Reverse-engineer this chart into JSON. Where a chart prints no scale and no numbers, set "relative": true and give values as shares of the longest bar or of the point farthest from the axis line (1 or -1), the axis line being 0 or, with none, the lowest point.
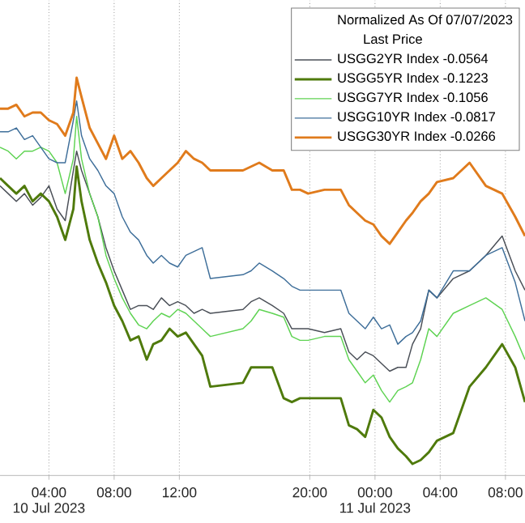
{
  "chart_data": {
    "type": "line",
    "relative": true,
    "legend_title": "Normalized As Of 07/07/2023",
    "annotations": [
      "Last Price",
      "10 Jul 2023",
      "11 Jul 2023"
    ],
    "xlim": [
      "2023-07-10T01:00",
      "2023-07-11T09:12"
    ],
    "xticks": [
      {
        "value": "2023-07-10T04:00",
        "label": "04:00"
      },
      {
        "value": "2023-07-10T08:00",
        "label": "08:00"
      },
      {
        "value": "2023-07-10T12:00",
        "label": "12:00"
      },
      {
        "value": "2023-07-10T20:00",
        "label": "20:00"
      },
      {
        "value": "2023-07-11T00:00",
        "label": "00:00"
      },
      {
        "value": "2023-07-11T04:00",
        "label": "04:00"
      },
      {
        "value": "2023-07-11T08:00",
        "label": "08:00"
      }
    ],
    "grid": "x",
    "legend": "top right",
    "marker": "none",
    "line_style": "solid",
    "x": [
      "2023-07-10T01:00",
      "2023-07-10T01:30",
      "2023-07-10T02:00",
      "2023-07-10T02:30",
      "2023-07-10T03:00",
      "2023-07-10T03:30",
      "2023-07-10T04:00",
      "2023-07-10T04:30",
      "2023-07-10T05:00",
      "2023-07-10T05:30",
      "2023-07-10T05:42",
      "2023-07-10T06:00",
      "2023-07-10T06:30",
      "2023-07-10T07:00",
      "2023-07-10T07:30",
      "2023-07-10T08:00",
      "2023-07-10T08:30",
      "2023-07-10T09:00",
      "2023-07-10T09:30",
      "2023-07-10T10:00",
      "2023-07-10T10:24",
      "2023-07-10T10:54",
      "2023-07-10T11:24",
      "2023-07-10T11:54",
      "2023-07-10T12:24",
      "2023-07-10T12:54",
      "2023-07-10T13:24",
      "2023-07-10T13:54",
      "2023-07-10T15:54",
      "2023-07-10T16:24",
      "2023-07-10T16:54",
      "2023-07-10T17:42",
      "2023-07-10T18:24",
      "2023-07-10T18:54",
      "2023-07-10T19:24",
      "2023-07-10T19:54",
      "2023-07-10T20:54",
      "2023-07-10T21:54",
      "2023-07-10T22:24",
      "2023-07-10T22:54",
      "2023-07-10T23:24",
      "2023-07-10T23:54",
      "2023-07-11T00:24",
      "2023-07-11T00:54",
      "2023-07-11T01:24",
      "2023-07-11T01:54",
      "2023-07-11T02:18",
      "2023-07-11T02:48",
      "2023-07-11T03:18",
      "2023-07-11T03:48",
      "2023-07-11T04:48",
      "2023-07-11T05:48",
      "2023-07-11T06:48",
      "2023-07-11T07:48",
      "2023-07-11T08:36",
      "2023-07-11T09:12"
    ],
    "series": [
      {
        "name": "USGG2YR Index  -0.0564",
        "color": "#4a4f57",
        "values": [
          0.72,
          0.7,
          0.68,
          0.7,
          0.67,
          0.69,
          0.72,
          0.66,
          0.63,
          0.76,
          0.81,
          0.76,
          0.7,
          0.64,
          0.56,
          0.5,
          0.45,
          0.4,
          0.41,
          0.41,
          0.4,
          0.43,
          0.41,
          0.42,
          0.41,
          0.39,
          0.4,
          0.39,
          0.4,
          0.42,
          0.43,
          0.41,
          0.39,
          0.35,
          0.35,
          0.35,
          0.34,
          0.35,
          0.29,
          0.27,
          0.29,
          0.28,
          0.26,
          0.24,
          0.25,
          0.25,
          0.31,
          0.35,
          0.45,
          0.43,
          0.48,
          0.5,
          0.54,
          0.59,
          0.5,
          0.45
        ]
      },
      {
        "name": "USGG5YR Index  -0.1223",
        "color": "#4f7a0c",
        "values": [
          0.74,
          0.72,
          0.7,
          0.72,
          0.68,
          0.7,
          0.68,
          0.64,
          0.58,
          0.66,
          0.77,
          0.68,
          0.58,
          0.52,
          0.47,
          0.41,
          0.37,
          0.32,
          0.33,
          0.27,
          0.31,
          0.32,
          0.35,
          0.33,
          0.34,
          0.31,
          0.28,
          0.2,
          0.21,
          0.25,
          0.25,
          0.25,
          0.17,
          0.16,
          0.17,
          0.17,
          0.17,
          0.17,
          0.1,
          0.09,
          0.07,
          0.14,
          0.12,
          0.07,
          0.04,
          0.02,
          0,
          0.01,
          0.03,
          0.06,
          0.08,
          0.2,
          0.25,
          0.31,
          0.25,
          0.16
        ]
      },
      {
        "name": "USGG7YR Index  -0.1056",
        "color": "#5fd353",
        "values": [
          0.82,
          0.81,
          0.79,
          0.81,
          0.81,
          0.82,
          0.81,
          0.78,
          0.7,
          0.79,
          0.9,
          0.79,
          0.7,
          0.64,
          0.54,
          0.48,
          0.43,
          0.39,
          0.36,
          0.35,
          0.37,
          0.39,
          0.38,
          0.4,
          0.39,
          0.37,
          0.35,
          0.33,
          0.35,
          0.37,
          0.4,
          0.39,
          0.38,
          0.33,
          0.32,
          0.32,
          0.33,
          0.33,
          0.27,
          0.24,
          0.21,
          0.23,
          0.19,
          0.16,
          0.19,
          0.2,
          0.21,
          0.27,
          0.35,
          0.33,
          0.39,
          0.41,
          0.43,
          0.4,
          0.33,
          0.27
        ]
      },
      {
        "name": "USGG10YR Index  -0.0817",
        "color": "#3f6f9a",
        "values": [
          0.86,
          0.86,
          0.87,
          0.84,
          0.85,
          0.82,
          0.79,
          0.78,
          0.78,
          0.89,
          0.94,
          0.85,
          0.79,
          0.76,
          0.72,
          0.7,
          0.64,
          0.6,
          0.58,
          0.54,
          0.52,
          0.54,
          0.52,
          0.51,
          0.54,
          0.55,
          0.56,
          0.48,
          0.49,
          0.5,
          0.52,
          0.5,
          0.48,
          0.46,
          0.45,
          0.45,
          0.45,
          0.45,
          0.39,
          0.37,
          0.35,
          0.38,
          0.35,
          0.36,
          0.31,
          0.33,
          0.34,
          0.37,
          0.45,
          0.43,
          0.5,
          0.5,
          0.54,
          0.56,
          0.47,
          0.37
        ]
      },
      {
        "name": "USGG30YR Index  -0.0266",
        "color": "#e07b1c",
        "values": [
          0.92,
          0.92,
          0.93,
          0.9,
          0.91,
          0.91,
          0.89,
          0.88,
          0.85,
          0.91,
          1.0,
          0.95,
          0.87,
          0.83,
          0.79,
          0.85,
          0.79,
          0.81,
          0.78,
          0.74,
          0.72,
          0.74,
          0.76,
          0.78,
          0.81,
          0.79,
          0.78,
          0.76,
          0.76,
          0.77,
          0.78,
          0.76,
          0.76,
          0.71,
          0.71,
          0.7,
          0.71,
          0.71,
          0.67,
          0.65,
          0.63,
          0.62,
          0.59,
          0.57,
          0.6,
          0.63,
          0.65,
          0.68,
          0.7,
          0.73,
          0.74,
          0.78,
          0.72,
          0.7,
          0.64,
          0.59
        ]
      }
    ]
  }
}
